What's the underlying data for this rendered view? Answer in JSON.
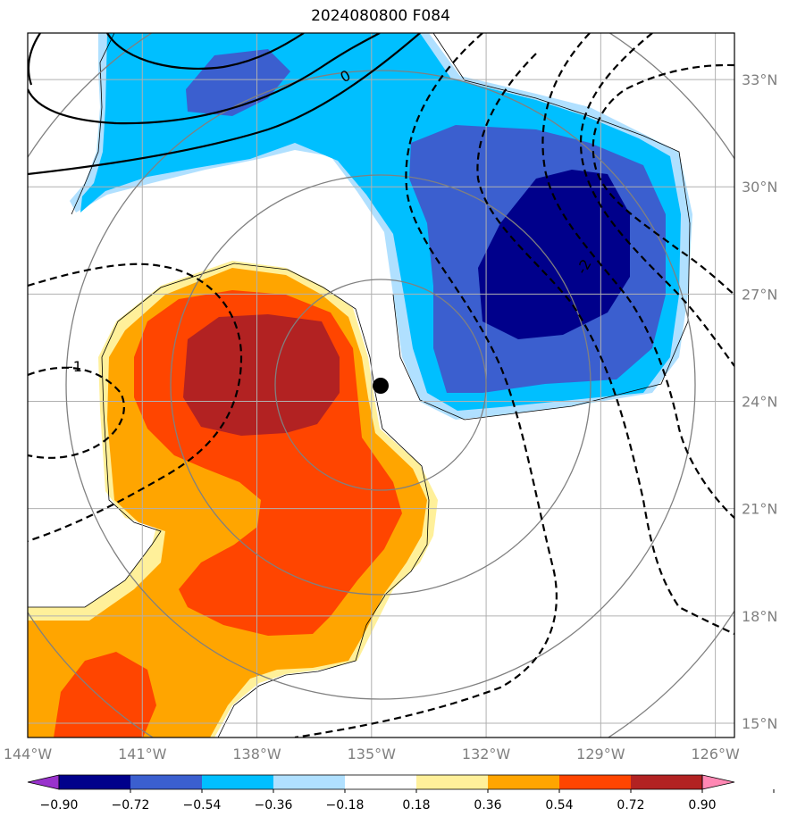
{
  "title": "2024080800 F084",
  "map": {
    "lon_range": [
      -144,
      -125.5
    ],
    "lat_range": [
      14.6,
      34.3
    ],
    "lat_ticks": [
      {
        "value": 15,
        "label": "15°N"
      },
      {
        "value": 18,
        "label": "18°N"
      },
      {
        "value": 21,
        "label": "21°N"
      },
      {
        "value": 24,
        "label": "24°N"
      },
      {
        "value": 27,
        "label": "27°N"
      },
      {
        "value": 30,
        "label": "30°N"
      },
      {
        "value": 33,
        "label": "33°N"
      }
    ],
    "lon_ticks": [
      {
        "value": -144,
        "label": "144°W"
      },
      {
        "value": -141,
        "label": "141°W"
      },
      {
        "value": -138,
        "label": "138°W"
      },
      {
        "value": -135,
        "label": "135°W"
      },
      {
        "value": -132,
        "label": "132°W"
      },
      {
        "value": -129,
        "label": "129°W"
      },
      {
        "value": -126,
        "label": "126°W"
      }
    ],
    "storm_center": {
      "lon": -134.5,
      "lat": 24.7
    },
    "range_rings_deg": [
      3,
      6,
      9,
      12
    ],
    "contour_labels": [
      "0",
      "-1",
      "-2"
    ]
  },
  "colorbar": {
    "bounds": [
      "−0.90",
      "−0.72",
      "−0.54",
      "−0.36",
      "−0.18",
      "0.18",
      "0.36",
      "0.54",
      "0.72",
      "0.90"
    ],
    "colors": [
      "#9932cc",
      "#00008b",
      "#3b5fcf",
      "#00bfff",
      "#b0e0ff",
      "#ffffff",
      "#fff09a",
      "#ffa500",
      "#ff4500",
      "#b22222",
      "#ff88b4"
    ]
  }
}
